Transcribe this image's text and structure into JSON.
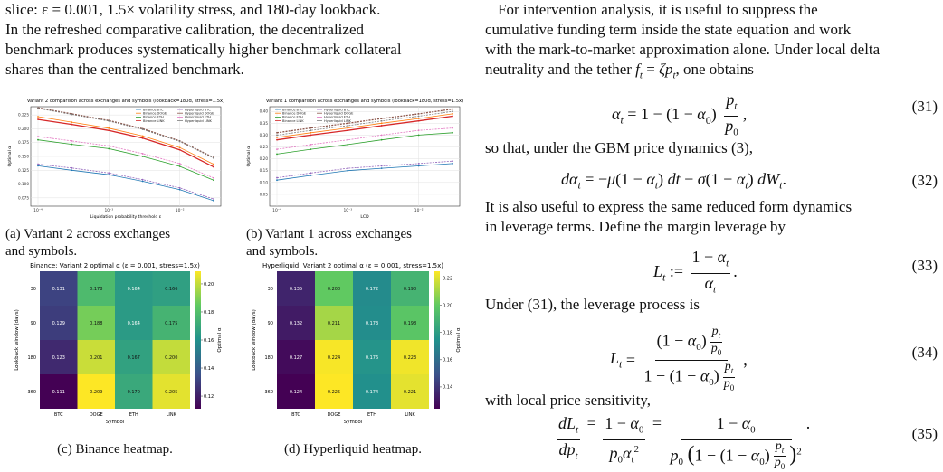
{
  "left": {
    "para1": [
      "slice: ε = 0.001, 1.5× volatility stress, and 180-day lookback.",
      "In the refreshed comparative calibration, the decentralized",
      "benchmark produces systematically higher benchmark collateral",
      "shares than the centralized benchmark."
    ],
    "captions": {
      "a1": "(a) Variant 2 across exchanges",
      "a2": "and symbols.",
      "b1": "(b) Variant 1 across exchanges",
      "b2": "and symbols.",
      "c": "(c) Binance heatmap.",
      "d": "(d) Hyperliquid heatmap."
    }
  },
  "right": {
    "para1": [
      "For intervention analysis, it is useful to suppress the",
      "cumulative funding term inside the state equation and work",
      "with the mark-to-market approximation alone. Under local delta",
      "neutrality and the tether f_t = ζp_t, one obtains"
    ],
    "para2": "so that, under the GBM price dynamics (3),",
    "para3": [
      "It is also useful to express the same reduced form dynamics",
      "in leverage terms. Define the margin leverage by"
    ],
    "para4": "Under (31), the leverage process is",
    "para5": "with local price sensitivity,",
    "eq_numbers": [
      "(31)",
      "(32)",
      "(33)",
      "(34)",
      "(35)"
    ]
  },
  "chart_data": [
    {
      "type": "line",
      "title": "Variant 2 comparison across exchanges and symbols (lookback=180d, stress=1.5x)",
      "xlabel": "Liquidation probability threshold ε",
      "ylabel": "Optimal α",
      "xscale": "log",
      "x": [
        0.0001,
        0.0003,
        0.001,
        0.003,
        0.01,
        0.03
      ],
      "yticks": [
        "0.075",
        "0.100",
        "0.125",
        "0.150",
        "0.175",
        "0.200",
        "0.225"
      ],
      "xticks": [
        "10⁻⁴",
        "10⁻³",
        "10⁻²"
      ],
      "ylim": [
        0.06,
        0.24
      ],
      "legend": [
        "Binance BTC",
        "Binance DOGE",
        "Binance ETH",
        "Binance LINK",
        "Hyperliquid BTC",
        "Hyperliquid DOGE",
        "Hyperliquid ETH",
        "Hyperliquid LINK"
      ],
      "series": [
        {
          "name": "Binance BTC",
          "color": "#1f77b4",
          "values": [
            0.133,
            0.125,
            0.117,
            0.105,
            0.09,
            0.07
          ]
        },
        {
          "name": "Binance DOGE",
          "color": "#ff7f0e",
          "values": [
            0.222,
            0.212,
            0.201,
            0.187,
            0.166,
            0.136
          ]
        },
        {
          "name": "Binance ETH",
          "color": "#2ca02c",
          "values": [
            0.18,
            0.172,
            0.164,
            0.15,
            0.132,
            0.107
          ]
        },
        {
          "name": "Binance LINK",
          "color": "#d62728",
          "values": [
            0.217,
            0.208,
            0.197,
            0.183,
            0.162,
            0.131
          ]
        },
        {
          "name": "Hyperliquid BTC",
          "color": "#9467bd",
          "values": [
            0.136,
            0.129,
            0.12,
            0.108,
            0.093,
            0.073
          ]
        },
        {
          "name": "Hyperliquid DOGE",
          "color": "#8c564b",
          "values": [
            0.238,
            0.227,
            0.215,
            0.2,
            0.178,
            0.148
          ]
        },
        {
          "name": "Hyperliquid ETH",
          "color": "#e377c2",
          "values": [
            0.186,
            0.178,
            0.169,
            0.155,
            0.137,
            0.111
          ]
        },
        {
          "name": "Hyperliquid LINK",
          "color": "#7f7f7f",
          "values": [
            0.237,
            0.226,
            0.214,
            0.199,
            0.177,
            0.147
          ]
        }
      ]
    },
    {
      "type": "line",
      "title": "Variant 1 comparison across exchanges and symbols (lookback=180d, stress=1.5x)",
      "xlabel": "LCD",
      "ylabel": "Optimal α",
      "xscale": "log",
      "x": [
        0.0001,
        0.0003,
        0.001,
        0.003,
        0.01,
        0.03
      ],
      "yticks": [
        "0.05",
        "0.10",
        "0.15",
        "0.20",
        "0.25",
        "0.30",
        "0.35",
        "0.40"
      ],
      "xticks": [
        "10⁻⁴",
        "10⁻³",
        "10⁻²"
      ],
      "ylim": [
        0.0,
        0.42
      ],
      "legend": [
        "Binance BTC",
        "Binance DOGE",
        "Binance ETH",
        "Binance LINK",
        "Hyperliquid BTC",
        "Hyperliquid DOGE",
        "Hyperliquid ETH",
        "Hyperliquid LINK"
      ],
      "series": [
        {
          "name": "Binance BTC",
          "color": "#1f77b4",
          "values": [
            0.11,
            0.13,
            0.15,
            0.16,
            0.17,
            0.18
          ]
        },
        {
          "name": "Binance DOGE",
          "color": "#ff7f0e",
          "values": [
            0.29,
            0.31,
            0.33,
            0.35,
            0.37,
            0.39
          ]
        },
        {
          "name": "Binance ETH",
          "color": "#2ca02c",
          "values": [
            0.22,
            0.24,
            0.26,
            0.28,
            0.3,
            0.31
          ]
        },
        {
          "name": "Binance LINK",
          "color": "#d62728",
          "values": [
            0.28,
            0.3,
            0.32,
            0.34,
            0.36,
            0.38
          ]
        },
        {
          "name": "Hyperliquid BTC",
          "color": "#9467bd",
          "values": [
            0.12,
            0.14,
            0.16,
            0.17,
            0.18,
            0.19
          ]
        },
        {
          "name": "Hyperliquid DOGE",
          "color": "#8c564b",
          "values": [
            0.31,
            0.33,
            0.35,
            0.37,
            0.39,
            0.41
          ]
        },
        {
          "name": "Hyperliquid ETH",
          "color": "#e377c2",
          "values": [
            0.24,
            0.26,
            0.28,
            0.3,
            0.32,
            0.33
          ]
        },
        {
          "name": "Hyperliquid LINK",
          "color": "#7f7f7f",
          "values": [
            0.3,
            0.32,
            0.34,
            0.36,
            0.38,
            0.4
          ]
        }
      ]
    },
    {
      "type": "heatmap",
      "title": "Binance: Variant 2 optimal α (ε = 0.001, stress=1.5x)",
      "xlabel": "Symbol",
      "ylabel": "Lookback window (days)",
      "colorbar_label": "Optimal α",
      "columns": [
        "BTC",
        "DOGE",
        "ETH",
        "LINK"
      ],
      "rows": [
        "30",
        "90",
        "180",
        "360"
      ],
      "values": [
        [
          0.131,
          0.178,
          0.164,
          0.166
        ],
        [
          0.129,
          0.188,
          0.164,
          0.175
        ],
        [
          0.123,
          0.201,
          0.167,
          0.2
        ],
        [
          0.111,
          0.209,
          0.17,
          0.205
        ]
      ],
      "colorbar_ticks": [
        "0.12",
        "0.14",
        "0.16",
        "0.18",
        "0.20"
      ],
      "vmin": 0.111,
      "vmax": 0.209
    },
    {
      "type": "heatmap",
      "title": "Hyperliquid: Variant 2 optimal α (ε = 0.001, stress=1.5x)",
      "xlabel": "Symbol",
      "ylabel": "Lookback window (days)",
      "colorbar_label": "Optimal α",
      "columns": [
        "BTC",
        "DOGE",
        "ETH",
        "LINK"
      ],
      "rows": [
        "30",
        "90",
        "180",
        "360"
      ],
      "values": [
        [
          0.135,
          0.2,
          0.172,
          0.19
        ],
        [
          0.132,
          0.211,
          0.173,
          0.198
        ],
        [
          0.127,
          0.224,
          0.176,
          0.223
        ],
        [
          0.124,
          0.225,
          0.174,
          0.221
        ]
      ],
      "colorbar_ticks": [
        "0.14",
        "0.16",
        "0.18",
        "0.20",
        "0.22"
      ],
      "vmin": 0.124,
      "vmax": 0.225
    }
  ]
}
